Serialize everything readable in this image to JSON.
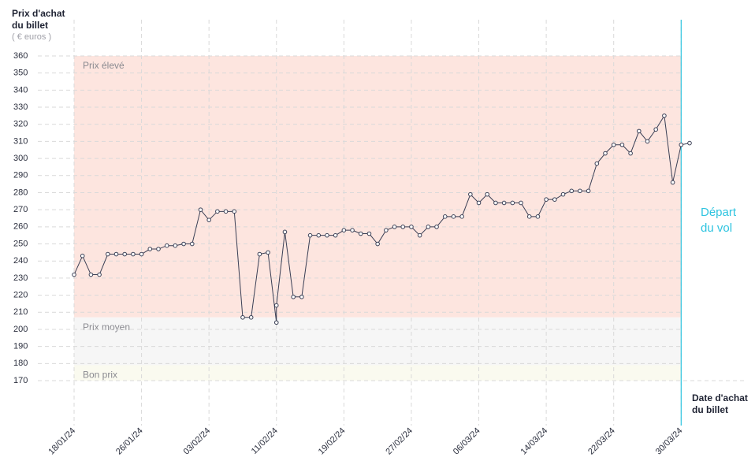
{
  "chart_data": {
    "type": "line",
    "y_title": [
      "Prix d'achat",
      "du billet"
    ],
    "y_unit": "( € euros )",
    "x_title": [
      "Date d'achat",
      "du billet"
    ],
    "x": [
      "18/01/24",
      "19/01/24",
      "20/01/24",
      "21/01/24",
      "22/01/24",
      "23/01/24",
      "24/01/24",
      "25/01/24",
      "26/01/24",
      "27/01/24",
      "28/01/24",
      "29/01/24",
      "30/01/24",
      "31/01/24",
      "01/02/24",
      "02/02/24",
      "03/02/24",
      "04/02/24",
      "05/02/24",
      "06/02/24",
      "07/02/24",
      "08/02/24",
      "09/02/24",
      "10/02/24",
      "11/02/24",
      "11/02/24",
      "12/02/24",
      "13/02/24",
      "14/02/24",
      "15/02/24",
      "16/02/24",
      "17/02/24",
      "18/02/24",
      "19/02/24",
      "20/02/24",
      "21/02/24",
      "22/02/24",
      "23/02/24",
      "24/02/24",
      "25/02/24",
      "26/02/24",
      "27/02/24",
      "28/02/24",
      "29/02/24",
      "01/03/24",
      "02/03/24",
      "03/03/24",
      "04/03/24",
      "05/03/24",
      "06/03/24",
      "07/03/24",
      "08/03/24",
      "09/03/24",
      "10/03/24",
      "11/03/24",
      "12/03/24",
      "13/03/24",
      "14/03/24",
      "15/03/24",
      "16/03/24",
      "17/03/24",
      "18/03/24",
      "19/03/24",
      "20/03/24",
      "21/03/24",
      "22/03/24",
      "23/03/24",
      "24/03/24",
      "25/03/24",
      "26/03/24",
      "27/03/24",
      "28/03/24",
      "29/03/24",
      "30/03/24",
      "31/03/24"
    ],
    "series": [
      {
        "name": "Prix",
        "color": "#3a3f55",
        "values": [
          232,
          243,
          232,
          232,
          244,
          244,
          244,
          244,
          244,
          247,
          247,
          249,
          249,
          250,
          250,
          270,
          264,
          269,
          269,
          269,
          207,
          207,
          244,
          245,
          204,
          214,
          257,
          219,
          219,
          255,
          255,
          255,
          255,
          258,
          258,
          256,
          256,
          250,
          258,
          260,
          260,
          260,
          255,
          260,
          260,
          266,
          266,
          266,
          279,
          274,
          279,
          274,
          274,
          274,
          274,
          266,
          266,
          276,
          276,
          279,
          281,
          281,
          281,
          297,
          303,
          308,
          308,
          303,
          316,
          310,
          317,
          325,
          286,
          308,
          309
        ]
      }
    ],
    "xlim": [
      "18/01/24",
      "31/03/24"
    ],
    "xticks": [
      "18/01/24",
      "26/01/24",
      "03/02/24",
      "11/02/24",
      "19/02/24",
      "27/02/24",
      "06/03/24",
      "14/03/24",
      "22/03/24",
      "30/03/24"
    ],
    "ylim": [
      170,
      360
    ],
    "yticks": [
      170,
      180,
      190,
      200,
      210,
      220,
      230,
      240,
      250,
      260,
      270,
      280,
      290,
      300,
      310,
      320,
      330,
      340,
      350,
      360
    ],
    "grid": true,
    "bands": [
      {
        "label": "Prix élevé",
        "from": 207,
        "to": 360,
        "color": "#fde5df"
      },
      {
        "label": "Prix moyen",
        "from": 179,
        "to": 207,
        "color": "#f6f6f6"
      },
      {
        "label": "Bon prix",
        "from": 170,
        "to": 179,
        "color": "#fafaef"
      }
    ],
    "departure": {
      "date": "30/03/24",
      "label": [
        "Départ",
        "du vol"
      ],
      "color": "#2ec4e0"
    }
  }
}
